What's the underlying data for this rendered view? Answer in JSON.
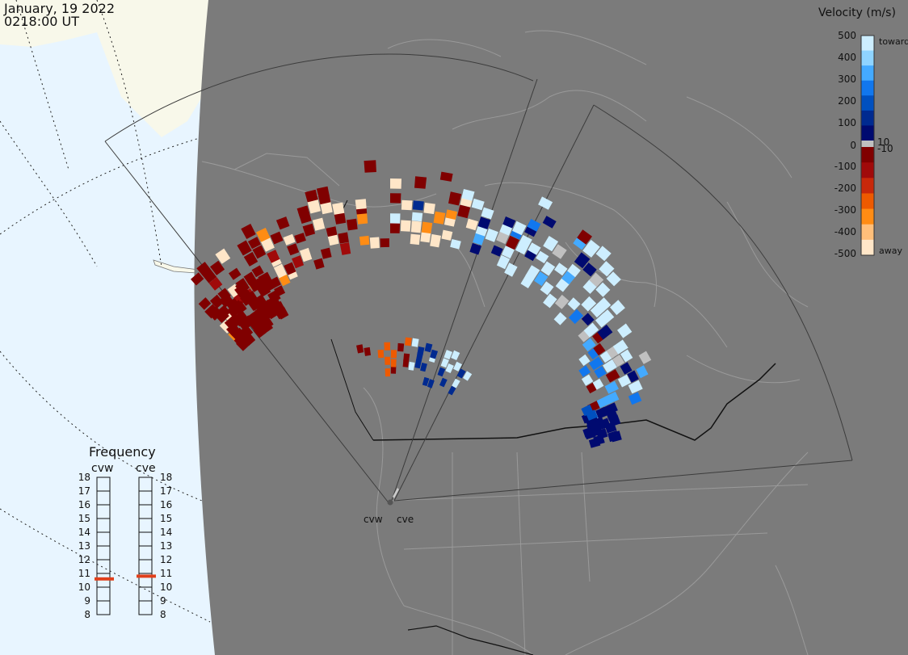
{
  "header": {
    "date": "January, 19 2022",
    "time": "0218:00 UT"
  },
  "colorbar": {
    "title": "Velocity (m/s)",
    "ticks": [
      "500",
      "400",
      "300",
      "200",
      "100",
      "10",
      "0",
      "-10",
      "-100",
      "-200",
      "-300",
      "-400",
      "-500"
    ],
    "toward_label": "toward",
    "away_label": "away"
  },
  "frequency": {
    "title": "Frequency",
    "panels": [
      {
        "name": "cvw",
        "value": 10.6
      },
      {
        "name": "cve",
        "value": 10.8
      }
    ],
    "ticks": [
      "18",
      "17",
      "16",
      "15",
      "14",
      "13",
      "12",
      "11",
      "10",
      "9",
      "8"
    ]
  },
  "radars": [
    {
      "name": "cvw"
    },
    {
      "name": "cve"
    }
  ],
  "colors": {
    "ocean": "#e8f5ff",
    "land_fov": "#7b7b7b",
    "land_outside": "#f8f8ea",
    "toward": [
      "#cdeeff",
      "#8fd4ff",
      "#44aaff",
      "#1177ee",
      "#0050c0",
      "#002a90",
      "#000a70"
    ],
    "away": [
      "#800000",
      "#a00a0a",
      "#c8280a",
      "#ee5a00",
      "#ff8c14",
      "#ffbf7a",
      "#ffe6c8"
    ],
    "ground": "#c0c0c0",
    "freq_marker": "#e0401c"
  }
}
